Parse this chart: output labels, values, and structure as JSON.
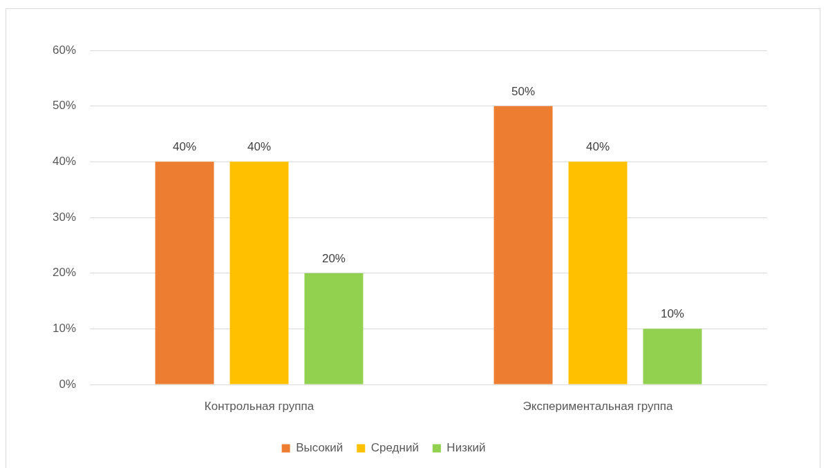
{
  "chart_data": {
    "type": "bar",
    "categories": [
      "Контрольная группа",
      "Экспериментальная группа"
    ],
    "series": [
      {
        "name": "Высокий",
        "color": "#ed7d31",
        "values": [
          40,
          50
        ],
        "value_labels": [
          "40%",
          "50%"
        ]
      },
      {
        "name": "Средний",
        "color": "#ffc000",
        "values": [
          40,
          40
        ],
        "value_labels": [
          "40%",
          "40%"
        ]
      },
      {
        "name": "Низкий",
        "color": "#92d050",
        "values": [
          20,
          10
        ],
        "value_labels": [
          "20%",
          "10%"
        ]
      }
    ],
    "ylim": [
      0,
      60
    ],
    "yticks": [
      {
        "value": 0,
        "label": "0%"
      },
      {
        "value": 10,
        "label": "10%"
      },
      {
        "value": 20,
        "label": "20%"
      },
      {
        "value": 30,
        "label": "30%"
      },
      {
        "value": 40,
        "label": "40%"
      },
      {
        "value": 50,
        "label": "50%"
      },
      {
        "value": 60,
        "label": "60%"
      }
    ],
    "grid": "y",
    "legend": "bottom"
  }
}
